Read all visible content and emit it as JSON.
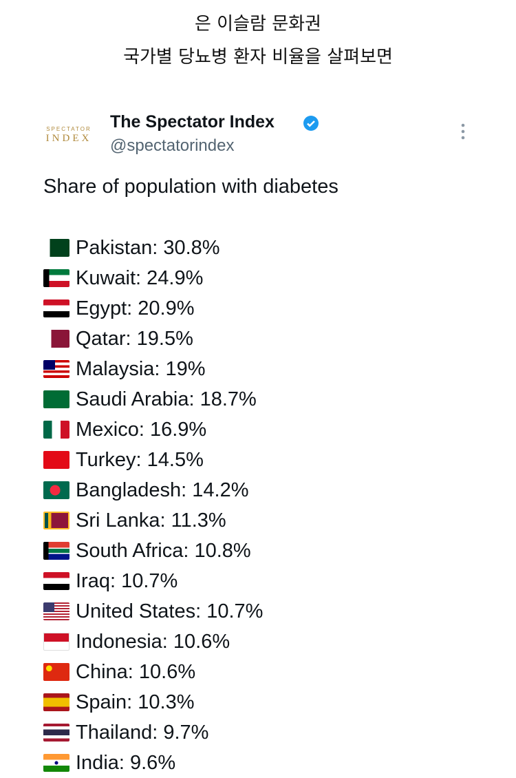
{
  "header": {
    "lines": [
      "은 이슬람 문화권",
      "국가별 당뇨병 환자 비율을 살펴보면"
    ]
  },
  "tweet": {
    "logo": {
      "top": "SPECTATOR",
      "bottom": "INDEX"
    },
    "author": "The Spectator Index",
    "handle": "@spectatorindex",
    "text": "Share of population with diabetes",
    "items": [
      "Pakistan: 30.8%",
      "Kuwait: 24.9%",
      "Egypt: 20.9%",
      "Qatar: 19.5%",
      "Malaysia: 19%",
      "Saudi Arabia: 18.7%",
      "Mexico: 16.9%",
      "Turkey: 14.5%",
      "Bangladesh: 14.2%",
      "Sri Lanka: 11.3%",
      "South Africa: 10.8%",
      "Iraq: 10.7%",
      "United States: 10.7%",
      "Indonesia: 10.6%",
      "China: 10.6%",
      "Spain: 10.3%",
      "Thailand: 9.7%",
      "India: 9.6%"
    ]
  }
}
